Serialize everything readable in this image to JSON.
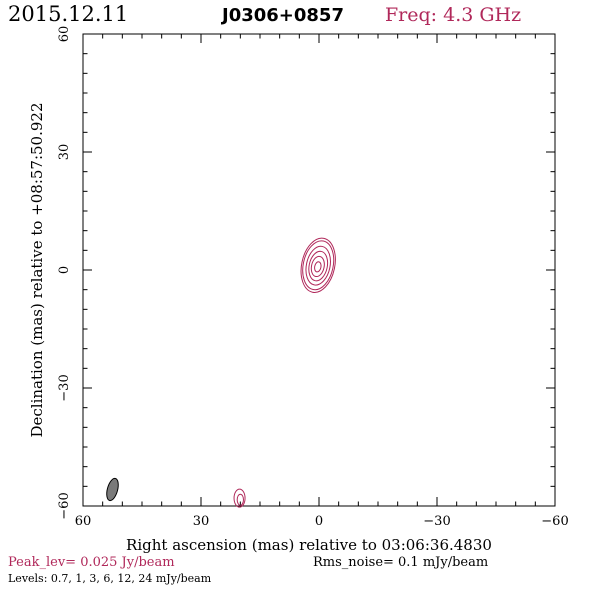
{
  "header": {
    "date": "2015.12.11",
    "source": "J0306+0857",
    "freq": "Freq: 4.3 GHz"
  },
  "footer": {
    "peak": "Peak_lev=  0.025 Jy/beam",
    "rms": "Rms_noise=   0.1 mJy/beam",
    "levels": "Levels: 0.7,    1,    3,    6,   12,   24 mJy/beam"
  },
  "colors": {
    "contour": "#b0285a",
    "header_freq": "#b0285a",
    "footer_peak": "#b0285a",
    "beam_fill": "#7a7a7a",
    "axes": "#000000"
  },
  "chart_data": {
    "type": "contour",
    "title": "J0306+0857",
    "xlabel": "Right ascension (mas) relative to 03:06:36.4830",
    "ylabel": "Declination (mas) relative to +08:57:50.922",
    "xlim": [
      60,
      -60
    ],
    "ylim": [
      -60,
      60
    ],
    "xticks": [
      60,
      30,
      0,
      -30,
      -60
    ],
    "yticks": [
      60,
      30,
      0,
      -30,
      -60
    ],
    "xtick_labels": [
      "60",
      "30",
      "0",
      "−30",
      "−60"
    ],
    "ytick_labels": [
      "60",
      "30",
      "0",
      "−30",
      "−60"
    ],
    "grid": false,
    "peak_jy_per_beam": 0.025,
    "rms_mjy_per_beam": 0.1,
    "levels_mjy_per_beam": [
      0.7,
      1,
      3,
      6,
      12,
      24
    ],
    "contours": [
      {
        "level": 0.7,
        "center": [
          0.2,
          1.2
        ],
        "rx": 4.2,
        "ry": 7.0,
        "rotation_deg": 12
      },
      {
        "level": 1,
        "center": [
          0.2,
          1.2
        ],
        "rx": 3.8,
        "ry": 6.3,
        "rotation_deg": 12
      },
      {
        "level": 3,
        "center": [
          0.2,
          1.1
        ],
        "rx": 3.0,
        "ry": 5.0,
        "rotation_deg": 12
      },
      {
        "level": 6,
        "center": [
          0.2,
          1.0
        ],
        "rx": 2.3,
        "ry": 3.8,
        "rotation_deg": 12
      },
      {
        "level": 12,
        "center": [
          0.3,
          0.9
        ],
        "rx": 1.6,
        "ry": 2.6,
        "rotation_deg": 12
      },
      {
        "level": 24,
        "center": [
          0.3,
          0.8
        ],
        "rx": 0.8,
        "ry": 1.3,
        "rotation_deg": 12
      }
    ],
    "artifacts": [
      {
        "level": 0.7,
        "center": [
          20.2,
          -58.0
        ],
        "rx": 1.4,
        "ry": 2.3,
        "rotation_deg": 0
      },
      {
        "level": 1,
        "center": [
          20.0,
          -58.4
        ],
        "rx": 0.8,
        "ry": 1.4,
        "rotation_deg": 0
      }
    ],
    "beam": {
      "center": [
        52.5,
        -55.8
      ],
      "major": 5.8,
      "minor": 2.6,
      "pa_deg": 15
    }
  }
}
